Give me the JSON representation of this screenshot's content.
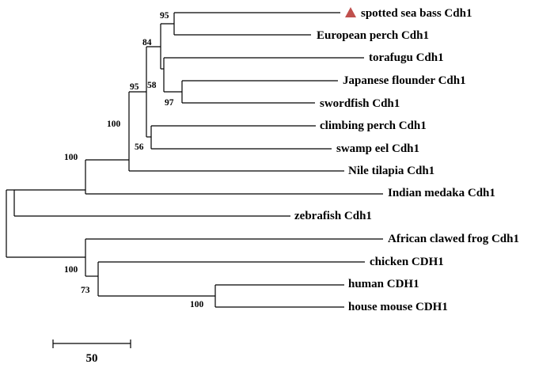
{
  "tree": {
    "taxa": [
      {
        "id": "seabass",
        "label": "spotted sea bass Cdh1",
        "highlight": true
      },
      {
        "id": "perch",
        "label": "European perch Cdh1"
      },
      {
        "id": "fugu",
        "label": "torafugu Cdh1"
      },
      {
        "id": "flounder",
        "label": "Japanese flounder Cdh1"
      },
      {
        "id": "swordfish",
        "label": "swordfish Cdh1"
      },
      {
        "id": "climbing",
        "label": "climbing perch Cdh1"
      },
      {
        "id": "eel",
        "label": "swamp eel Cdh1"
      },
      {
        "id": "tilapia",
        "label": "Nile tilapia Cdh1"
      },
      {
        "id": "medaka",
        "label": "Indian medaka Cdh1"
      },
      {
        "id": "zebrafish",
        "label": "zebrafish Cdh1"
      },
      {
        "id": "frog",
        "label": "African clawed frog Cdh1"
      },
      {
        "id": "chicken",
        "label": "chicken CDH1"
      },
      {
        "id": "human",
        "label": "human CDH1"
      },
      {
        "id": "mouse",
        "label": "house mouse CDH1"
      }
    ],
    "bootstrap": [
      "95",
      "84",
      "58",
      "97",
      "95",
      "56",
      "100",
      "100",
      "100",
      "73",
      "100"
    ],
    "scale_bar": {
      "value": "50"
    },
    "highlight_marker": {
      "shape": "triangle",
      "color": "#c0504d"
    },
    "line_color": "#000000"
  }
}
